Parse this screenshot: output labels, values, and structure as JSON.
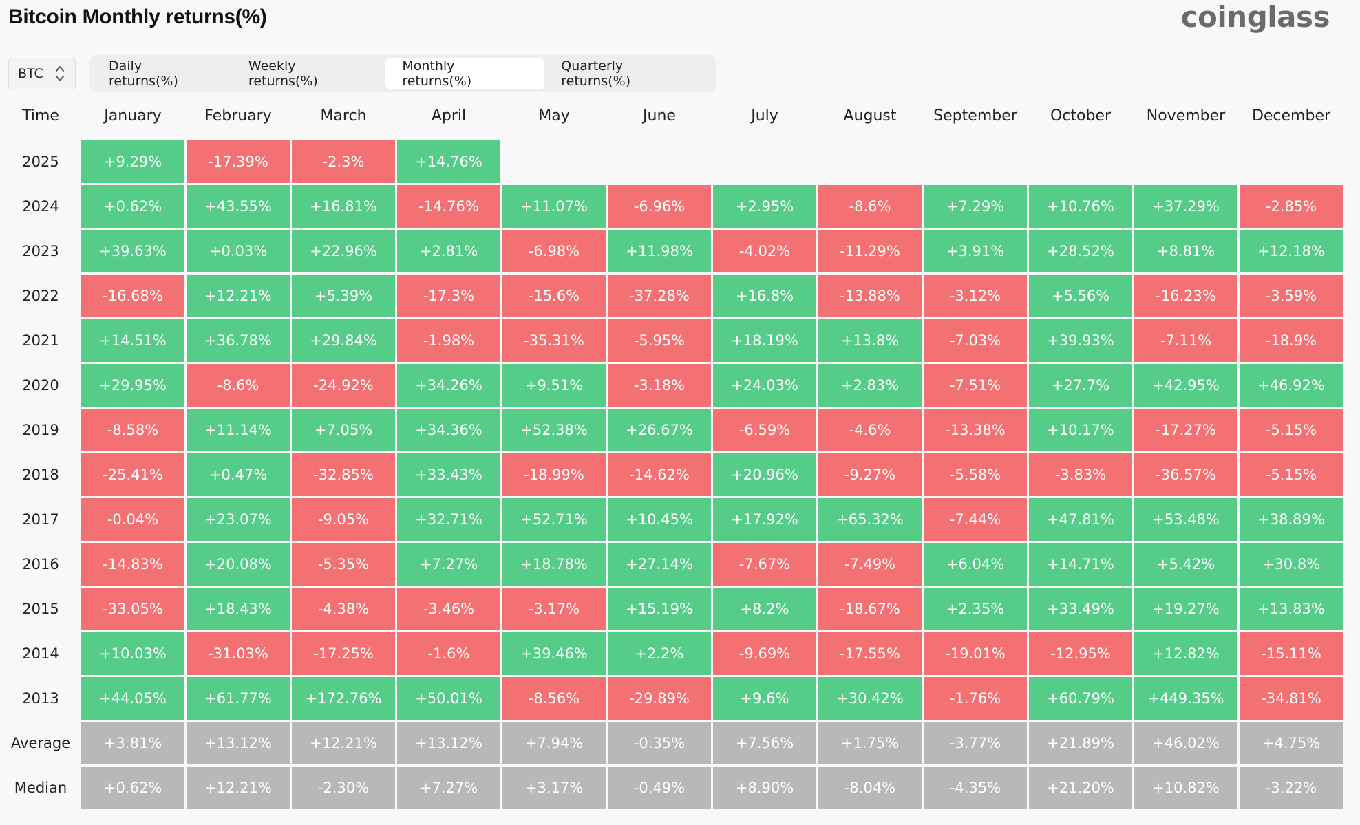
{
  "page": {
    "title": "Bitcoin Monthly returns(%)",
    "brand": "coinglass"
  },
  "coin_select": {
    "value": "BTC"
  },
  "tabs": [
    {
      "label": "Daily returns(%)",
      "active": false
    },
    {
      "label": "Weekly returns(%)",
      "active": false
    },
    {
      "label": "Monthly returns(%)",
      "active": true
    },
    {
      "label": "Quarterly returns(%)",
      "active": false
    }
  ],
  "colors": {
    "positive": "#55cc88",
    "negative": "#f47173",
    "summary": "#b8b8b8"
  },
  "table": {
    "time_header": "Time",
    "months": [
      "January",
      "February",
      "March",
      "April",
      "May",
      "June",
      "July",
      "August",
      "September",
      "October",
      "November",
      "December"
    ],
    "rows": [
      {
        "label": "2025",
        "values": [
          "+9.29%",
          "-17.39%",
          "-2.3%",
          "+14.76%",
          "",
          "",
          "",
          "",
          "",
          "",
          "",
          ""
        ]
      },
      {
        "label": "2024",
        "values": [
          "+0.62%",
          "+43.55%",
          "+16.81%",
          "-14.76%",
          "+11.07%",
          "-6.96%",
          "+2.95%",
          "-8.6%",
          "+7.29%",
          "+10.76%",
          "+37.29%",
          "-2.85%"
        ]
      },
      {
        "label": "2023",
        "values": [
          "+39.63%",
          "+0.03%",
          "+22.96%",
          "+2.81%",
          "-6.98%",
          "+11.98%",
          "-4.02%",
          "-11.29%",
          "+3.91%",
          "+28.52%",
          "+8.81%",
          "+12.18%"
        ]
      },
      {
        "label": "2022",
        "values": [
          "-16.68%",
          "+12.21%",
          "+5.39%",
          "-17.3%",
          "-15.6%",
          "-37.28%",
          "+16.8%",
          "-13.88%",
          "-3.12%",
          "+5.56%",
          "-16.23%",
          "-3.59%"
        ]
      },
      {
        "label": "2021",
        "values": [
          "+14.51%",
          "+36.78%",
          "+29.84%",
          "-1.98%",
          "-35.31%",
          "-5.95%",
          "+18.19%",
          "+13.8%",
          "-7.03%",
          "+39.93%",
          "-7.11%",
          "-18.9%"
        ]
      },
      {
        "label": "2020",
        "values": [
          "+29.95%",
          "-8.6%",
          "-24.92%",
          "+34.26%",
          "+9.51%",
          "-3.18%",
          "+24.03%",
          "+2.83%",
          "-7.51%",
          "+27.7%",
          "+42.95%",
          "+46.92%"
        ]
      },
      {
        "label": "2019",
        "values": [
          "-8.58%",
          "+11.14%",
          "+7.05%",
          "+34.36%",
          "+52.38%",
          "+26.67%",
          "-6.59%",
          "-4.6%",
          "-13.38%",
          "+10.17%",
          "-17.27%",
          "-5.15%"
        ]
      },
      {
        "label": "2018",
        "values": [
          "-25.41%",
          "+0.47%",
          "-32.85%",
          "+33.43%",
          "-18.99%",
          "-14.62%",
          "+20.96%",
          "-9.27%",
          "-5.58%",
          "-3.83%",
          "-36.57%",
          "-5.15%"
        ]
      },
      {
        "label": "2017",
        "values": [
          "-0.04%",
          "+23.07%",
          "-9.05%",
          "+32.71%",
          "+52.71%",
          "+10.45%",
          "+17.92%",
          "+65.32%",
          "-7.44%",
          "+47.81%",
          "+53.48%",
          "+38.89%"
        ]
      },
      {
        "label": "2016",
        "values": [
          "-14.83%",
          "+20.08%",
          "-5.35%",
          "+7.27%",
          "+18.78%",
          "+27.14%",
          "-7.67%",
          "-7.49%",
          "+6.04%",
          "+14.71%",
          "+5.42%",
          "+30.8%"
        ]
      },
      {
        "label": "2015",
        "values": [
          "-33.05%",
          "+18.43%",
          "-4.38%",
          "-3.46%",
          "-3.17%",
          "+15.19%",
          "+8.2%",
          "-18.67%",
          "+2.35%",
          "+33.49%",
          "+19.27%",
          "+13.83%"
        ]
      },
      {
        "label": "2014",
        "values": [
          "+10.03%",
          "-31.03%",
          "-17.25%",
          "-1.6%",
          "+39.46%",
          "+2.2%",
          "-9.69%",
          "-17.55%",
          "-19.01%",
          "-12.95%",
          "+12.82%",
          "-15.11%"
        ]
      },
      {
        "label": "2013",
        "values": [
          "+44.05%",
          "+61.77%",
          "+172.76%",
          "+50.01%",
          "-8.56%",
          "-29.89%",
          "+9.6%",
          "+30.42%",
          "-1.76%",
          "+60.79%",
          "+449.35%",
          "-34.81%"
        ]
      }
    ],
    "summary": [
      {
        "label": "Average",
        "values": [
          "+3.81%",
          "+13.12%",
          "+12.21%",
          "+13.12%",
          "+7.94%",
          "-0.35%",
          "+7.56%",
          "+1.75%",
          "-3.77%",
          "+21.89%",
          "+46.02%",
          "+4.75%"
        ]
      },
      {
        "label": "Median",
        "values": [
          "+0.62%",
          "+12.21%",
          "-2.30%",
          "+7.27%",
          "+3.17%",
          "-0.49%",
          "+8.90%",
          "-8.04%",
          "-4.35%",
          "+21.20%",
          "+10.82%",
          "-3.22%"
        ]
      }
    ]
  }
}
